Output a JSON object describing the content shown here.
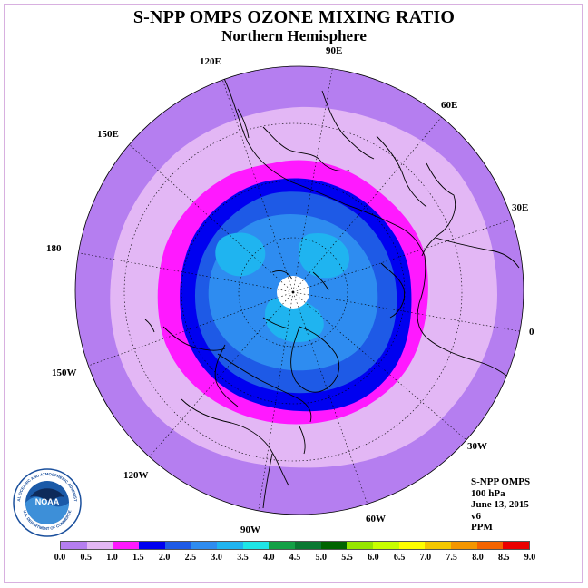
{
  "title": "S-NPP OMPS OZONE MIXING RATIO",
  "subtitle": "Northern Hemisphere",
  "lon_labels": [
    "90E",
    "60E",
    "30E",
    "0",
    "30W",
    "60W",
    "90W",
    "120W",
    "150W",
    "180",
    "150E",
    "120E"
  ],
  "info": {
    "satellite": "S-NPP OMPS",
    "level": "100 hPa",
    "date": "June 13, 2015",
    "version": "v6",
    "units": "PPM"
  },
  "logo": {
    "text": "NOAA",
    "ring_top": "NATIONAL OCEANIC AND ATMOSPHERIC ADMINISTRATION",
    "ring_bottom": "U.S. DEPARTMENT OF COMMERCE"
  },
  "colorbar": {
    "ticks": [
      "0.0",
      "0.5",
      "1.0",
      "1.5",
      "2.0",
      "2.5",
      "3.0",
      "3.5",
      "4.0",
      "4.5",
      "5.0",
      "5.5",
      "6.0",
      "6.5",
      "7.0",
      "7.5",
      "8.0",
      "8.5",
      "9.0"
    ],
    "colors": [
      "#b57ef0",
      "#e3b7f5",
      "#ff19ff",
      "#0000f0",
      "#1e5ae6",
      "#2e8cf0",
      "#1fb4f0",
      "#1ee6e6",
      "#14a046",
      "#0a7832",
      "#006400",
      "#96e600",
      "#c8ff00",
      "#ffff00",
      "#f5c800",
      "#f59600",
      "#f56400",
      "#eb0000",
      "#8b4513"
    ]
  },
  "map_colors": {
    "background_ring": "#b57ef0",
    "band_0_5": "#e3b7f5",
    "band_1_0": "#ff19ff",
    "band_1_5": "#0000f0",
    "band_2_0": "#1e5ae6",
    "band_2_5": "#2e8cf0",
    "band_3_0": "#1fb4f0",
    "pole_mask": "#ffffff"
  }
}
